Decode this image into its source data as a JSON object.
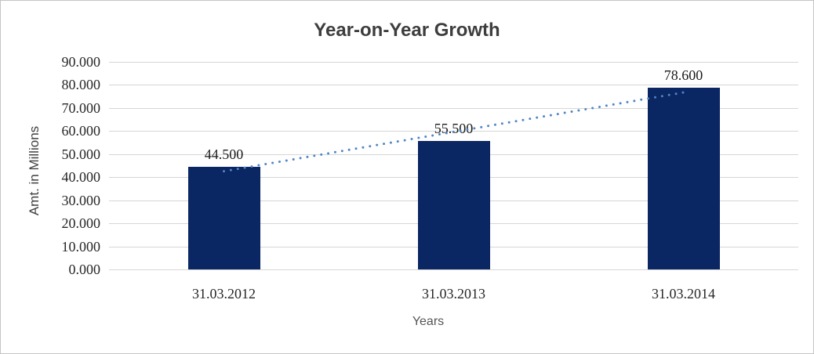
{
  "chart_title": "Year-on-Year Growth",
  "colors": {
    "bar": "#0a2663",
    "trendline": "#4f86c6",
    "gridline": "#d6d6d6",
    "title_text": "#3d3d3d",
    "tick_text": "#262626",
    "axis_title_text": "#555555",
    "frame_border": "#c4c4c4",
    "background": "#ffffff"
  },
  "chart_data": {
    "type": "bar",
    "title": "Year-on-Year Growth",
    "xlabel": "Years",
    "ylabel": "Amt. in Millions",
    "categories": [
      "31.03.2012",
      "31.03.2013",
      "31.03.2014"
    ],
    "values": [
      44.5,
      55.5,
      78.6
    ],
    "data_labels": [
      "44.500",
      "55.500",
      "78.600"
    ],
    "y_ticks": [
      "0.000",
      "10.000",
      "20.000",
      "30.000",
      "40.000",
      "50.000",
      "60.000",
      "70.000",
      "80.000",
      "90.000"
    ],
    "ylim": [
      0,
      90
    ],
    "y_tick_step": 10,
    "grid": true,
    "legend": "none",
    "trendline": {
      "type": "linear",
      "style": "dotted"
    }
  }
}
